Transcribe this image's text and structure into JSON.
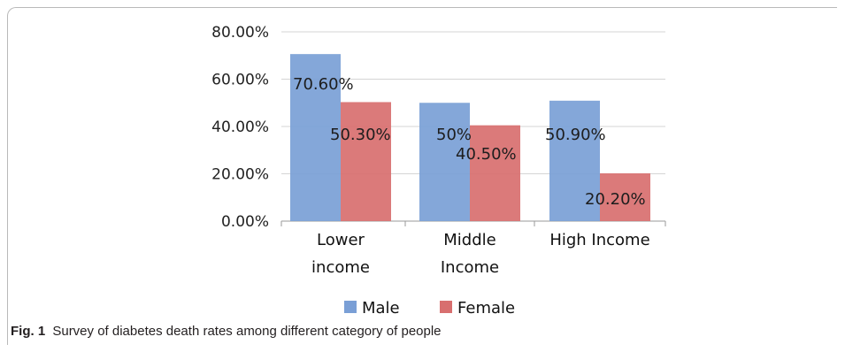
{
  "figure": {
    "caption_prefix": "Fig. 1",
    "caption_text": "Survey of diabetes death rates among different category of people"
  },
  "chart_data": {
    "type": "bar",
    "title": "",
    "xlabel": "",
    "ylabel": "",
    "categories": [
      [
        "Lower",
        "income"
      ],
      [
        "Middle",
        "Income"
      ],
      [
        "High Income"
      ]
    ],
    "y_tick_labels": [
      "0.00%",
      "20.00%",
      "40.00%",
      "60.00%",
      "80.00%"
    ],
    "ylim": [
      0,
      80
    ],
    "grid": true,
    "legend_position": "bottom",
    "series": [
      {
        "name": "Male",
        "color": "#7a9fd6",
        "values": [
          70.6,
          50,
          50.9
        ],
        "labels": [
          "70.60%",
          "50%",
          "50.90%"
        ]
      },
      {
        "name": "Female",
        "color": "#d86f6f",
        "values": [
          50.3,
          40.5,
          20.2
        ],
        "labels": [
          "50.30%",
          "40.50%",
          "20.20%"
        ]
      }
    ]
  }
}
